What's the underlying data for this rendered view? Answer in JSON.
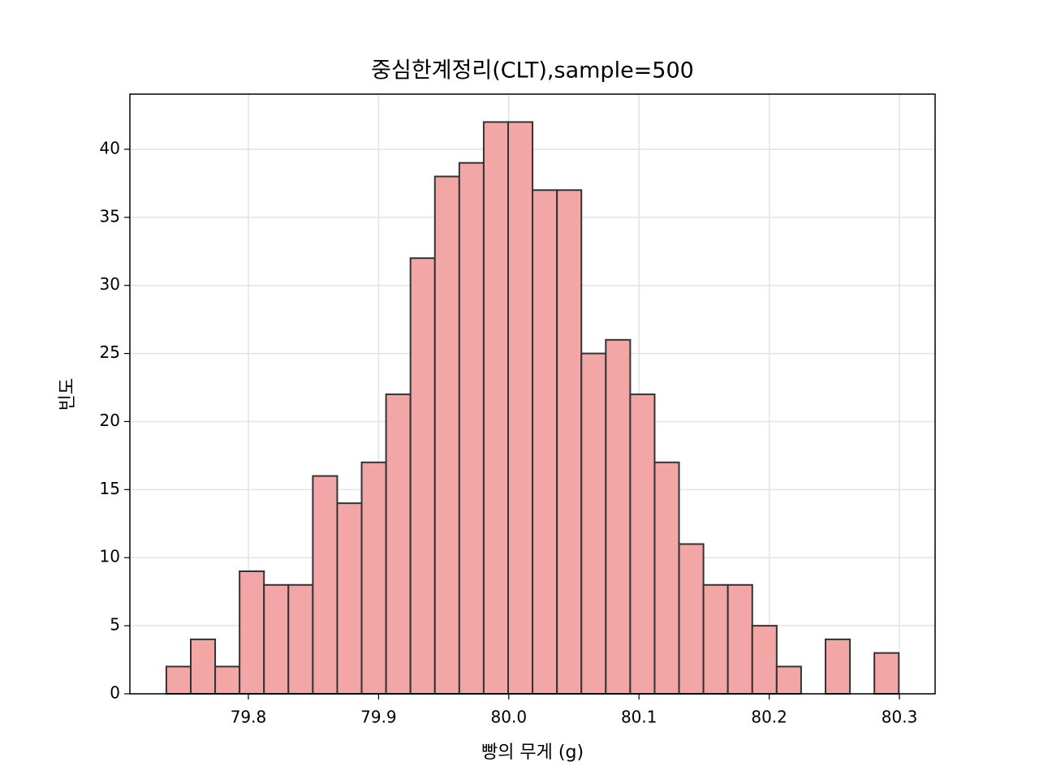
{
  "chart_data": {
    "type": "histogram",
    "title": "중심한계정리(CLT),sample=500",
    "x_label": "빵의 무게 (g)",
    "y_label": "빈도",
    "bins": [
      79.737,
      79.75575,
      79.7745,
      79.79325,
      79.812,
      79.83075,
      79.8495,
      79.86825,
      79.887,
      79.90575,
      79.9245,
      79.94325,
      79.962,
      79.98075,
      79.9995,
      80.01825,
      80.037,
      80.05575,
      80.0745,
      80.09325,
      80.112,
      80.13075,
      80.1495,
      80.16825,
      80.187,
      80.20575,
      80.2245,
      80.24325,
      80.262,
      80.28075,
      80.2995
    ],
    "counts": [
      2,
      4,
      2,
      9,
      8,
      8,
      16,
      14,
      17,
      22,
      32,
      38,
      39,
      42,
      42,
      37,
      37,
      25,
      26,
      22,
      17,
      11,
      8,
      8,
      5,
      2,
      0,
      4,
      0,
      3
    ],
    "color": "#f3a6a6",
    "edgecolor": "#333333",
    "xlim": [
      79.709,
      80.3274
    ],
    "ylim": [
      0,
      44.05
    ],
    "xticks": [
      79.8,
      79.9,
      {
        "value": 80,
        "label": "80.0"
      },
      80.1,
      80.2,
      80.3
    ],
    "yticks": [
      0,
      5,
      10,
      15,
      20,
      25,
      30,
      35,
      40
    ],
    "grid": true
  }
}
